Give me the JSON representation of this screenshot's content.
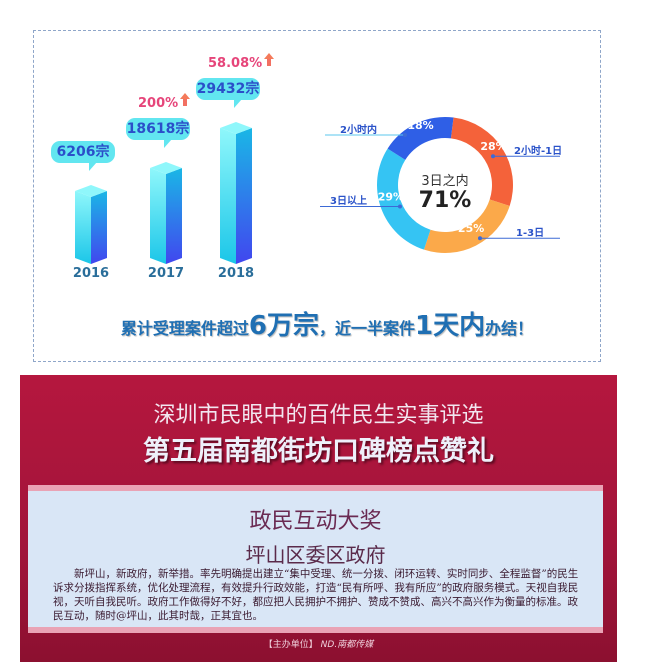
{
  "chart_data": [
    {
      "type": "bar",
      "categories": [
        "2016",
        "2017",
        "2018"
      ],
      "values": [
        6206,
        18618,
        29432
      ],
      "data_labels": [
        "6206宗",
        "18618宗",
        "29432宗"
      ],
      "growth_labels": [
        "",
        "200%",
        "58.08%"
      ],
      "colors": {
        "bar_top": "#8ff7fb",
        "bar_front": "#2fd3ec",
        "bar_side": "#4146ef",
        "bubble": "#62e6f0",
        "growth": "#e6457a"
      }
    },
    {
      "type": "pie",
      "style": "donut",
      "center_title": "3日之内",
      "center_value": "71%",
      "slices": [
        {
          "name": "2小时-1日",
          "value": 28,
          "label": "28%",
          "color": "#f4623a"
        },
        {
          "name": "1-3日",
          "value": 25,
          "label": "25%",
          "color": "#fba94a"
        },
        {
          "name": "3日以上",
          "value": 29,
          "label": "29%",
          "color": "#35c4f3"
        },
        {
          "name": "2小时内",
          "value": 18,
          "label": "18%",
          "color": "#2f5fe6"
        }
      ]
    }
  ],
  "caption": {
    "p1": "累计受理案件超过",
    "p2": "6万宗",
    "p3": "，近一半案件",
    "p4": "1天内",
    "p5": "办结！"
  },
  "photo": {
    "title1": "深圳市民眼中的百件民生实事评选",
    "title2": "第五届南都街坊口碑榜点赞礼",
    "award": "政民互动大奖",
    "winner": "坪山区委区政府",
    "body": "新坪山，新政府，新举措。率先明确提出建立“集中受理、统一分拨、闭环运转、实时同步、全程监督”的民生诉求分拨指挥系统，优化处理流程，有效提升行政效能，打造“民有所呼、我有所应”的政府服务模式。天视自我民视，天听自我民听。政府工作做得好不好，都应把人民拥护不拥护、赞成不赞成、高兴不高兴作为衡量的标准。政民互动，随时@坪山，此其时哉，正其宜也。",
    "sponsor": "【主办单位】",
    "sponsor_logo": "ND.南都传媒"
  }
}
